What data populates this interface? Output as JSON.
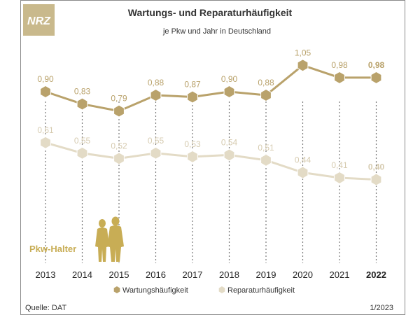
{
  "logo_text": "NRZ",
  "colors": {
    "frame": "#8a8a8a",
    "logo_bg": "#c9b98c",
    "series1": "#b9a26b",
    "series2": "#e3dbc6",
    "series2_label": "#d6cbb0",
    "highlight": "#c8ad55",
    "text": "#333333",
    "axis_text": "#222222",
    "gridline": "#777777"
  },
  "footer": {
    "source": "Quelle: DAT",
    "date": "1/2023"
  },
  "illustration": {
    "label": "Pkw-Halter",
    "icon": "people-silhouette-icon"
  },
  "chart_data": {
    "type": "line",
    "title": "Wartungs- und Reparaturhäufigkeit",
    "subtitle": "je Pkw und Jahr in Deutschland",
    "categories": [
      "2013",
      "2014",
      "2015",
      "2016",
      "2017",
      "2018",
      "2019",
      "2020",
      "2021",
      "2022"
    ],
    "highlight_category": "2022",
    "marker": "hexagon",
    "legend_position": "bottom-center",
    "grid": "vertical dashed lines per year",
    "series": [
      {
        "name": "Wartungshäufigkeit",
        "values": [
          0.9,
          0.83,
          0.79,
          0.88,
          0.87,
          0.9,
          0.88,
          1.05,
          0.98,
          0.98
        ],
        "labels": [
          "0,90",
          "0,83",
          "0,79",
          "0,88",
          "0,87",
          "0,90",
          "0,88",
          "1,05",
          "0,98",
          "0,98"
        ]
      },
      {
        "name": "Reparaturhäufigkeit",
        "values": [
          0.61,
          0.55,
          0.52,
          0.55,
          0.53,
          0.54,
          0.51,
          0.44,
          0.41,
          0.4
        ],
        "labels": [
          "0,61",
          "0,55",
          "0,52",
          "0,55",
          "0,53",
          "0,54",
          "0,51",
          "0,44",
          "0,41",
          "0,40"
        ]
      }
    ]
  }
}
